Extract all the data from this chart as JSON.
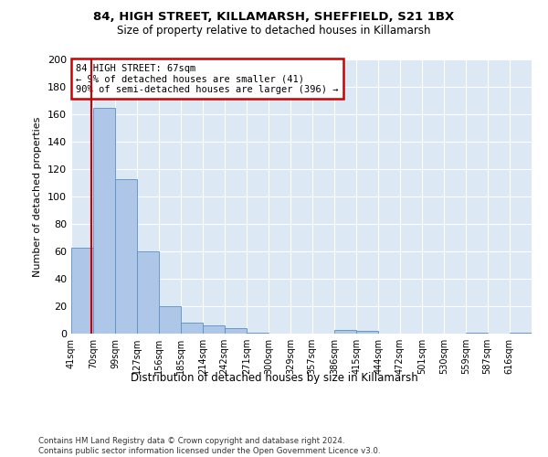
{
  "title1": "84, HIGH STREET, KILLAMARSH, SHEFFIELD, S21 1BX",
  "title2": "Size of property relative to detached houses in Killamarsh",
  "xlabel": "Distribution of detached houses by size in Killamarsh",
  "ylabel": "Number of detached properties",
  "footnote1": "Contains HM Land Registry data © Crown copyright and database right 2024.",
  "footnote2": "Contains public sector information licensed under the Open Government Licence v3.0.",
  "property_size": 67,
  "annotation_line1": "84 HIGH STREET: 67sqm",
  "annotation_line2": "← 9% of detached houses are smaller (41)",
  "annotation_line3": "90% of semi-detached houses are larger (396) →",
  "bar_color": "#aec6e8",
  "bar_edge_color": "#5a8fc2",
  "redline_color": "#cc0000",
  "annotation_box_edge": "#cc0000",
  "background_color": "#dde8f5",
  "categories": [
    "41sqm",
    "70sqm",
    "99sqm",
    "127sqm",
    "156sqm",
    "185sqm",
    "214sqm",
    "242sqm",
    "271sqm",
    "300sqm",
    "329sqm",
    "357sqm",
    "386sqm",
    "415sqm",
    "444sqm",
    "472sqm",
    "501sqm",
    "530sqm",
    "559sqm",
    "587sqm",
    "616sqm"
  ],
  "bin_edges": [
    41,
    70,
    99,
    127,
    156,
    185,
    214,
    242,
    271,
    300,
    329,
    357,
    386,
    415,
    444,
    472,
    501,
    530,
    559,
    587,
    616
  ],
  "values": [
    63,
    165,
    113,
    60,
    20,
    8,
    6,
    4,
    1,
    0,
    0,
    0,
    3,
    2,
    0,
    0,
    0,
    0,
    1,
    0,
    1
  ],
  "ylim": [
    0,
    200
  ],
  "yticks": [
    0,
    20,
    40,
    60,
    80,
    100,
    120,
    140,
    160,
    180,
    200
  ]
}
